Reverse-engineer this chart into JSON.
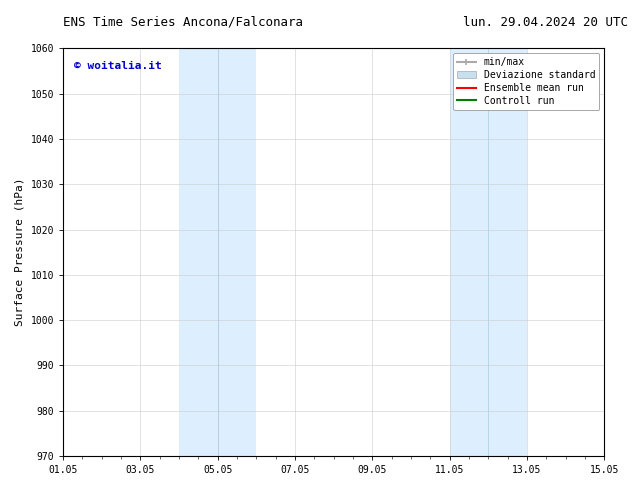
{
  "title_left": "ENS Time Series Ancona/Falconara",
  "title_right": "lun. 29.04.2024 20 UTC",
  "ylabel": "Surface Pressure (hPa)",
  "ylim": [
    970,
    1060
  ],
  "yticks": [
    970,
    980,
    990,
    1000,
    1010,
    1020,
    1030,
    1040,
    1050,
    1060
  ],
  "xtick_labels": [
    "01.05",
    "03.05",
    "05.05",
    "07.05",
    "09.05",
    "11.05",
    "13.05",
    "15.05"
  ],
  "xtick_positions": [
    0,
    2,
    4,
    6,
    8,
    10,
    12,
    14
  ],
  "xlim": [
    0,
    14
  ],
  "shaded_bands": [
    {
      "x_start": 3,
      "x_end": 5,
      "color": "#ddeeff"
    },
    {
      "x_start": 10,
      "x_end": 12,
      "color": "#ddeeff"
    }
  ],
  "legend_entries": [
    {
      "label": "min/max",
      "color": "#aaaaaa",
      "lw": 1.5
    },
    {
      "label": "Deviazione standard",
      "color": "#c8dff0",
      "lw": 8
    },
    {
      "label": "Ensemble mean run",
      "color": "#ff0000",
      "lw": 1.5
    },
    {
      "label": "Controll run",
      "color": "#008000",
      "lw": 1.5
    }
  ],
  "watermark": "© woitalia.it",
  "watermark_color": "#0000cc",
  "bg_color": "#ffffff",
  "title_fontsize": 9,
  "axis_fontsize": 8,
  "tick_fontsize": 7,
  "legend_fontsize": 7
}
